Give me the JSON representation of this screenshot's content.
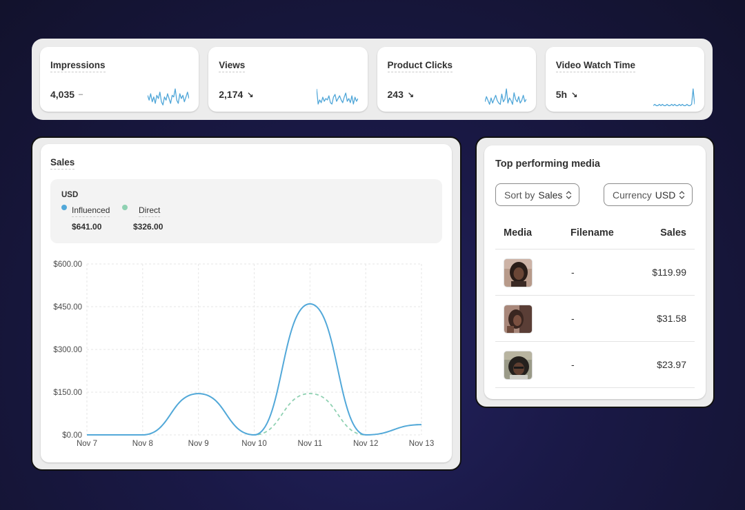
{
  "metrics": [
    {
      "title": "Impressions",
      "value": "4,035",
      "trend": "–",
      "trend_type": "flat",
      "spark": [
        8,
        5,
        9,
        4,
        7,
        3,
        8,
        6,
        10,
        4,
        2,
        7,
        5,
        9,
        6,
        3,
        8,
        7,
        12,
        5,
        3,
        9,
        6,
        8,
        4,
        7,
        10,
        6
      ]
    },
    {
      "title": "Views",
      "value": "2,174",
      "trend": "↘",
      "trend_type": "down",
      "spark": [
        14,
        3,
        6,
        4,
        8,
        5,
        7,
        6,
        9,
        4,
        3,
        8,
        10,
        5,
        7,
        9,
        6,
        4,
        8,
        11,
        5,
        7,
        4,
        9,
        3,
        8,
        5,
        7
      ]
    },
    {
      "title": "Product Clicks",
      "value": "243",
      "trend": "↘",
      "trend_type": "down",
      "spark": [
        5,
        9,
        6,
        3,
        8,
        4,
        7,
        10,
        6,
        4,
        3,
        11,
        5,
        7,
        15,
        4,
        8,
        6,
        3,
        12,
        7,
        5,
        9,
        4,
        6,
        10,
        5,
        7
      ]
    },
    {
      "title": "Video Watch Time",
      "value": "5h",
      "trend": "↘",
      "trend_type": "down",
      "spark": [
        2,
        3,
        2,
        2,
        3,
        2,
        3,
        2,
        2,
        3,
        2,
        2,
        3,
        2,
        3,
        2,
        2,
        3,
        2,
        3,
        2,
        2,
        3,
        2,
        2,
        3,
        15,
        3
      ]
    }
  ],
  "colors": {
    "influenced": "#52a8d9",
    "direct": "#8fd1b2",
    "spark": "#4fa6d8"
  },
  "sales": {
    "title": "Sales",
    "currency": "USD",
    "legend": [
      {
        "name": "Influenced",
        "value": "$641.00"
      },
      {
        "name": "Direct",
        "value": "$326.00"
      }
    ]
  },
  "chart_data": {
    "type": "line",
    "x": [
      "Nov 7",
      "Nov 8",
      "Nov 9",
      "Nov 10",
      "Nov 11",
      "Nov 12",
      "Nov 13"
    ],
    "series": [
      {
        "name": "Influenced",
        "values": [
          0,
          0,
          145,
          0,
          460,
          0,
          36
        ]
      },
      {
        "name": "Direct",
        "values": [
          0,
          0,
          145,
          0,
          145,
          0,
          36
        ]
      }
    ],
    "y_ticks": [
      "$600.00",
      "$450.00",
      "$300.00",
      "$150.00",
      "$0.00"
    ],
    "ylim": [
      0,
      600
    ],
    "grid": true,
    "xlabel": "",
    "ylabel": ""
  },
  "media": {
    "title": "Top performing media",
    "sort": {
      "label": "Sort by",
      "value": "Sales"
    },
    "currency": {
      "label": "Currency",
      "value": "USD"
    },
    "headers": {
      "media": "Media",
      "filename": "Filename",
      "sales": "Sales"
    },
    "rows": [
      {
        "filename": "-",
        "sales": "$119.99"
      },
      {
        "filename": "-",
        "sales": "$31.58"
      },
      {
        "filename": "-",
        "sales": "$23.97"
      }
    ]
  }
}
